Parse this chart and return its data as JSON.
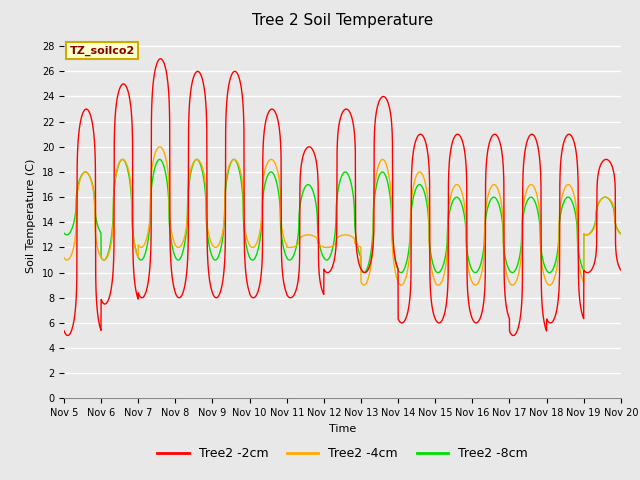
{
  "title": "Tree 2 Soil Temperature",
  "xlabel": "Time",
  "ylabel": "Soil Temperature (C)",
  "ylim": [
    0,
    29
  ],
  "yticks": [
    0,
    2,
    4,
    6,
    8,
    10,
    12,
    14,
    16,
    18,
    20,
    22,
    24,
    26,
    28
  ],
  "x_day_labels": [
    "Nov 5",
    "Nov 6",
    "Nov 7",
    "Nov 8",
    "Nov 9",
    "Nov 10",
    "Nov 11",
    "Nov 12",
    "Nov 13",
    "Nov 14",
    "Nov 15",
    "Nov 16",
    "Nov 17",
    "Nov 18",
    "Nov 19",
    "Nov 20"
  ],
  "annotation_text": "TZ_soilco2",
  "annotation_box_color": "#ffffcc",
  "annotation_border_color": "#ccaa00",
  "colors": {
    "red": "#ff0000",
    "orange": "#ffaa00",
    "green": "#00dd00"
  },
  "legend_labels": [
    "Tree2 -2cm",
    "Tree2 -4cm",
    "Tree2 -8cm"
  ],
  "background_color": "#e8e8e8",
  "plot_bg_color": "#e8e8e8",
  "grid_color": "#ffffff",
  "title_fontsize": 11,
  "axis_label_fontsize": 8,
  "tick_fontsize": 7,
  "legend_fontsize": 9,
  "red_day_peaks": [
    23,
    25,
    27,
    26,
    26,
    23,
    20,
    23,
    24,
    21,
    21,
    21,
    21,
    21,
    19
  ],
  "red_day_troughs": [
    5,
    7.5,
    8,
    8,
    8,
    8,
    8,
    10,
    10,
    6,
    6,
    6,
    5,
    6,
    10
  ],
  "orange_day_peaks": [
    18,
    19,
    20,
    19,
    19,
    19,
    13,
    13,
    19,
    18,
    17,
    17,
    17,
    17,
    16
  ],
  "orange_day_min": [
    11,
    11,
    12,
    12,
    12,
    12,
    12,
    12,
    9,
    9,
    9,
    9,
    9,
    9,
    13
  ],
  "green_day_peaks": [
    18,
    19,
    19,
    19,
    19,
    18,
    17,
    18,
    18,
    17,
    16,
    16,
    16,
    16,
    16
  ],
  "green_day_min": [
    13,
    11,
    11,
    11,
    11,
    11,
    11,
    11,
    10,
    10,
    10,
    10,
    10,
    10,
    13
  ]
}
